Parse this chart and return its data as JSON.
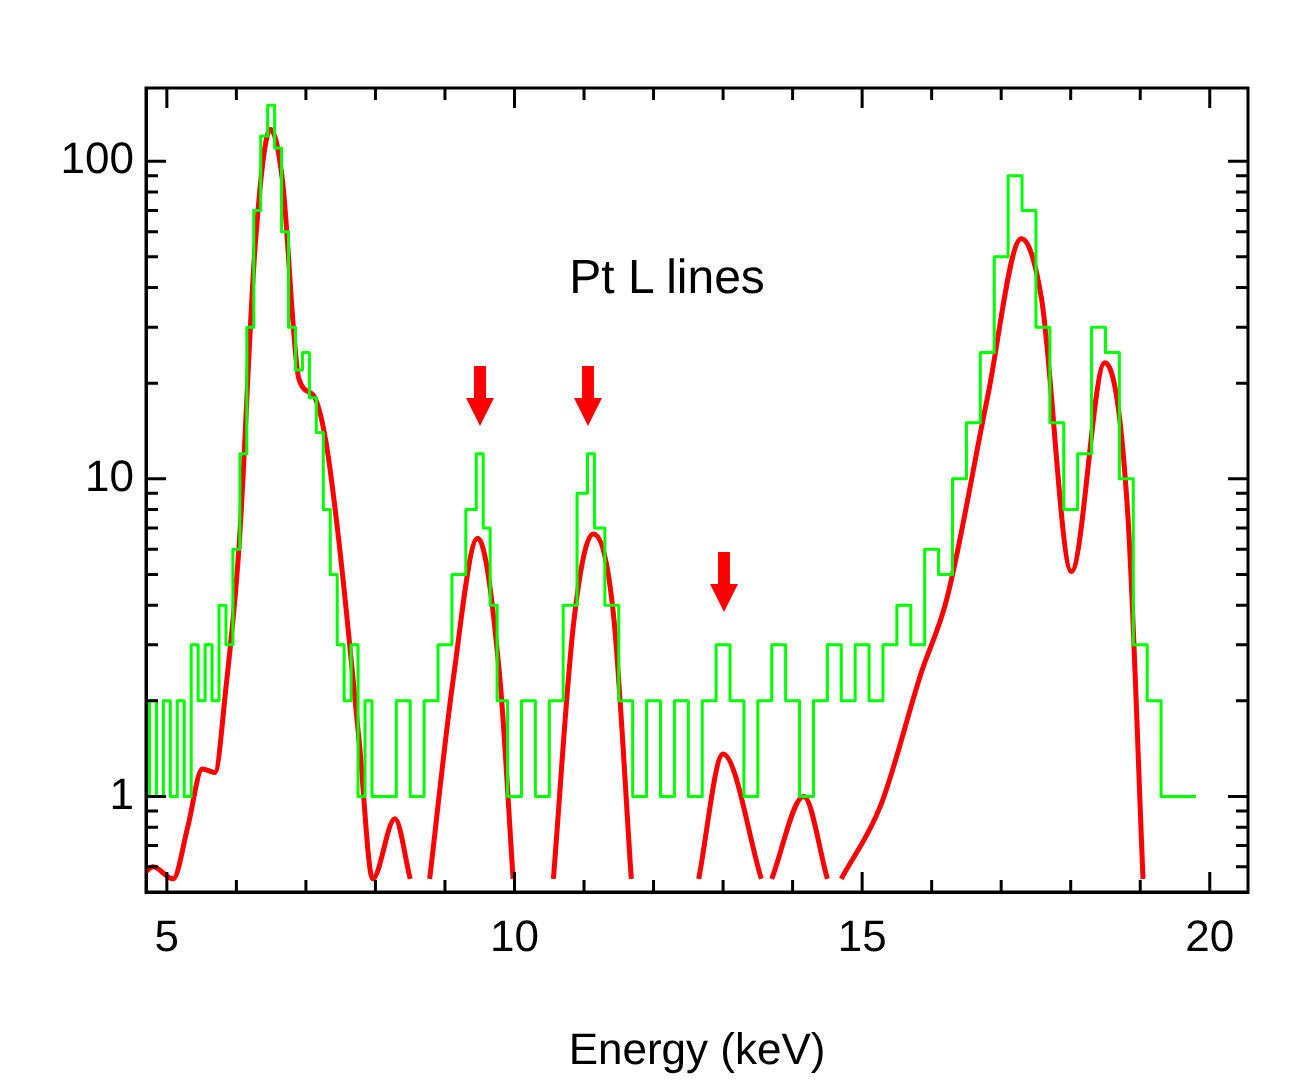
{
  "chart_data": {
    "type": "line",
    "xlabel": "Energy (keV)",
    "log": "y",
    "grid": false,
    "legend": false,
    "marker": "none",
    "xlim": [
      4.7,
      20.55
    ],
    "ylim": [
      0.5,
      170
    ],
    "xticks": [
      {
        "value": 5,
        "label": "5"
      },
      {
        "value": 6,
        "label": null
      },
      {
        "value": 7,
        "label": null
      },
      {
        "value": 8,
        "label": null
      },
      {
        "value": 9,
        "label": null
      },
      {
        "value": 10,
        "label": "10"
      },
      {
        "value": 11,
        "label": null
      },
      {
        "value": 12,
        "label": null
      },
      {
        "value": 13,
        "label": null
      },
      {
        "value": 14,
        "label": null
      },
      {
        "value": 15,
        "label": "15"
      },
      {
        "value": 16,
        "label": null
      },
      {
        "value": 17,
        "label": null
      },
      {
        "value": 18,
        "label": null
      },
      {
        "value": 19,
        "label": null
      },
      {
        "value": 20,
        "label": "20"
      }
    ],
    "yticks": [
      {
        "value": 0.6,
        "label": null
      },
      {
        "value": 0.7,
        "label": null
      },
      {
        "value": 0.8,
        "label": null
      },
      {
        "value": 0.9,
        "label": null
      },
      1,
      {
        "value": 2,
        "label": null
      },
      {
        "value": 3,
        "label": null
      },
      {
        "value": 4,
        "label": null
      },
      {
        "value": 5,
        "label": null
      },
      {
        "value": 6,
        "label": null
      },
      {
        "value": 7,
        "label": null
      },
      {
        "value": 8,
        "label": null
      },
      {
        "value": 9,
        "label": null
      },
      10,
      {
        "value": 20,
        "label": null
      },
      {
        "value": 30,
        "label": null
      },
      {
        "value": 40,
        "label": null
      },
      {
        "value": 50,
        "label": null
      },
      {
        "value": 60,
        "label": null
      },
      {
        "value": 70,
        "label": null
      },
      {
        "value": 80,
        "label": null
      },
      {
        "value": 90,
        "label": null
      },
      100
    ],
    "annotations": [
      "Pt L lines"
    ],
    "series": [
      {
        "type": "step",
        "color": "#00ff00",
        "x": [
          4.7,
          4.8,
          4.9,
          5.0,
          5.1,
          5.2,
          5.3,
          5.4,
          5.5,
          5.6,
          5.7,
          5.8,
          5.9,
          6.0,
          6.1,
          6.2,
          6.3,
          6.4,
          6.5,
          6.6,
          6.7,
          6.8,
          6.9,
          7.0,
          7.1,
          7.2,
          7.3,
          7.4,
          7.5,
          7.6,
          7.7,
          7.8,
          7.9,
          8.0,
          8.2,
          8.4,
          8.6,
          8.8,
          9.0,
          9.2,
          9.4,
          9.5,
          9.6,
          9.7,
          9.8,
          10.0,
          10.2,
          10.4,
          10.6,
          10.8,
          11.0,
          11.1,
          11.2,
          11.4,
          11.6,
          11.8,
          12.0,
          12.2,
          12.4,
          12.6,
          12.8,
          13.0,
          13.2,
          13.4,
          13.6,
          13.8,
          14.0,
          14.2,
          14.4,
          14.6,
          14.8,
          15.0,
          15.2,
          15.4,
          15.6,
          15.8,
          16.0,
          16.2,
          16.4,
          16.6,
          16.8,
          17.0,
          17.2,
          17.4,
          17.6,
          17.8,
          18.0,
          18.2,
          18.4,
          18.6,
          18.8,
          19.0,
          19.2,
          19.4,
          19.6,
          19.8
        ],
        "values": [
          1,
          2,
          1,
          2,
          1,
          2,
          1,
          3,
          2,
          3,
          2,
          4,
          3,
          6,
          12,
          30,
          70,
          120,
          150,
          110,
          60,
          30,
          22,
          25,
          18,
          14,
          8,
          5,
          3,
          2,
          3,
          1,
          2,
          1,
          1,
          2,
          1,
          2,
          3,
          5,
          8,
          12,
          7,
          4,
          2,
          1,
          2,
          1,
          2,
          4,
          9,
          12,
          7,
          4,
          2,
          1,
          2,
          1,
          2,
          1,
          2,
          3,
          2,
          1,
          2,
          3,
          2,
          1,
          2,
          3,
          2,
          3,
          2,
          3,
          4,
          3,
          6,
          5,
          10,
          15,
          25,
          50,
          90,
          70,
          30,
          15,
          8,
          12,
          30,
          25,
          10,
          3,
          2,
          1,
          1,
          1
        ]
      },
      {
        "type": "line",
        "color": "#ff0000",
        "x": [
          4.7,
          4.8,
          5.09,
          5.3,
          5.51,
          5.69,
          5.85,
          6.04,
          6.27,
          6.49,
          6.66,
          6.9,
          7.1,
          7.28,
          7.48,
          7.77,
          7.96,
          8.28,
          8.5,
          8.63,
          8.78,
          9.12,
          9.47,
          9.79,
          9.98,
          10.02,
          10.51,
          10.56,
          10.85,
          11.13,
          11.42,
          11.68,
          11.71,
          12.61,
          12.65,
          13.0,
          13.55,
          13.62,
          13.7,
          14.16,
          14.5,
          14.6,
          14.7,
          15.27,
          15.85,
          16.22,
          16.8,
          17.29,
          17.58,
          18.01,
          18.49,
          18.82,
          19.04
        ],
        "values": [
          0.58,
          0.6,
          0.55,
          0.8,
          1.22,
          1.19,
          2.2,
          6.2,
          54,
          126,
          88,
          20.6,
          18.4,
          13.4,
          6.2,
          1.46,
          0.55,
          0.85,
          0.55,
          null,
          0.55,
          2.35,
          6.5,
          2.35,
          0.55,
          null,
          null,
          0.55,
          3.5,
          6.7,
          3.8,
          0.55,
          null,
          null,
          0.55,
          1.36,
          0.55,
          null,
          0.55,
          1.0,
          0.55,
          null,
          0.55,
          0.94,
          2.45,
          4.2,
          17.9,
          57,
          36.9,
          5.1,
          23.2,
          7.8,
          0.55
        ]
      }
    ]
  }
}
